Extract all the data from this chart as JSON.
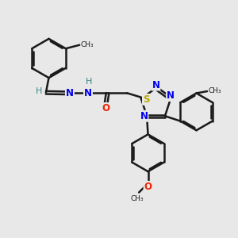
{
  "bg_color": "#e8e8e8",
  "bond_color": "#1a1a1a",
  "bond_width": 1.8,
  "atom_colors": {
    "N": "#0000ee",
    "O": "#ee2200",
    "S": "#bbaa00",
    "H": "#3a8888",
    "C": "#1a1a1a"
  },
  "figsize": [
    3.0,
    3.0
  ],
  "dpi": 100,
  "xlim": [
    0,
    10
  ],
  "ylim": [
    0,
    10
  ]
}
